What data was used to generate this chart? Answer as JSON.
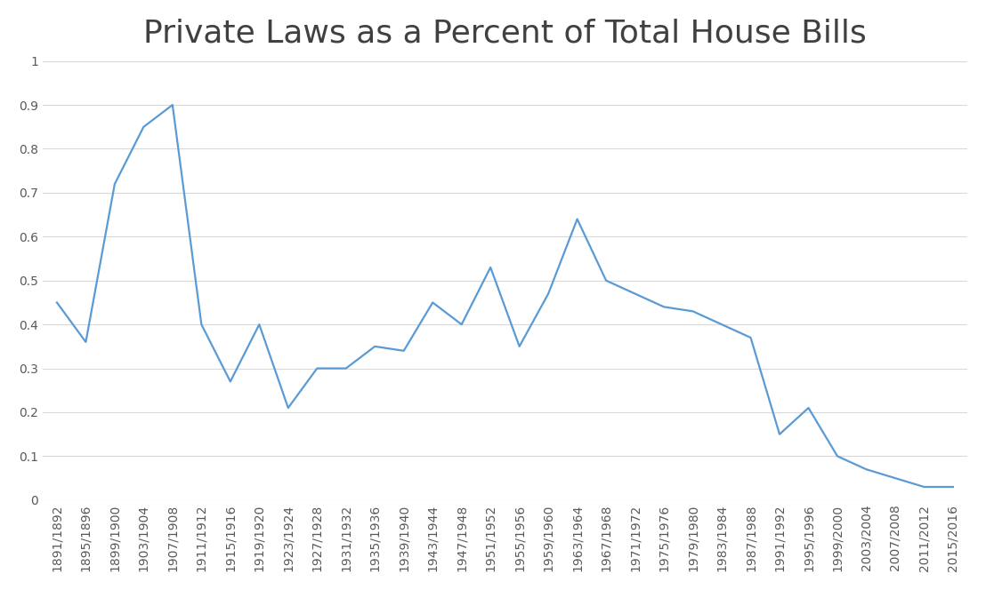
{
  "title": "Private Laws as a Percent of Total House Bills",
  "title_fontsize": 26,
  "line_color": "#5B9BD5",
  "background_color": "#ffffff",
  "tick_labels": [
    "1891/1892",
    "1895/1896",
    "1899/1900",
    "1903/1904",
    "1907/1908",
    "1911/1912",
    "1915/1916",
    "1919/1920",
    "1923/1924",
    "1927/1928",
    "1931/1932",
    "1935/1936",
    "1939/1940",
    "1943/1944",
    "1947/1948",
    "1951/1952",
    "1955/1956",
    "1959/1960",
    "1963/1964",
    "1967/1968",
    "1971/1972",
    "1975/1976",
    "1979/1980",
    "1983/1984",
    "1987/1988",
    "1991/1992",
    "1995/1996",
    "1999/2000",
    "2003/2004",
    "2007/2008",
    "2011/2012",
    "2015/2016"
  ],
  "values": [
    0.45,
    0.36,
    0.72,
    0.85,
    0.9,
    0.4,
    0.27,
    0.4,
    0.21,
    0.3,
    0.3,
    0.35,
    0.34,
    0.45,
    0.4,
    0.53,
    0.35,
    0.47,
    0.64,
    0.5,
    0.47,
    0.44,
    0.43,
    0.4,
    0.37,
    0.15,
    0.21,
    0.1,
    0.07,
    0.05,
    0.03,
    0.03
  ],
  "ylim": [
    0,
    1.0
  ],
  "yticks": [
    0,
    0.1,
    0.2,
    0.3,
    0.4,
    0.5,
    0.6,
    0.7,
    0.8,
    0.9,
    1
  ],
  "ytick_labels": [
    "0",
    "0.1",
    "0.2",
    "0.3",
    "0.4",
    "0.5",
    "0.6",
    "0.7",
    "0.8",
    "0.9",
    "1"
  ],
  "grid_color": "#d9d9d9",
  "tick_fontsize": 10,
  "linewidth": 1.6,
  "label_color": "#595959",
  "title_color": "#404040"
}
